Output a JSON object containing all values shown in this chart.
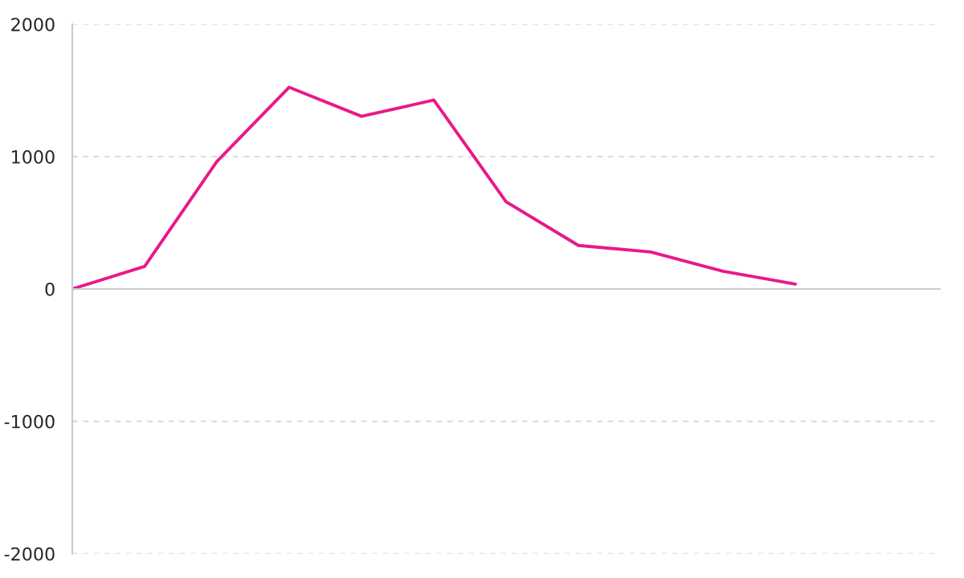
{
  "chart_data": {
    "type": "line",
    "categories": [
      null,
      null,
      null,
      null,
      null,
      null,
      null,
      null,
      null,
      null,
      null
    ],
    "series": [
      {
        "color": "#e8198b",
        "values": [
          0,
          171,
          963,
          1524,
          1305,
          1427,
          659,
          329,
          280,
          134,
          37
        ]
      }
    ],
    "ylim": [
      -2000,
      2000
    ],
    "yticks": [
      -2000,
      -1000,
      0,
      1000,
      2000
    ],
    "tick_labels": "y",
    "grid": "y",
    "legend": false,
    "marker": "none",
    "line_style": "solid"
  }
}
